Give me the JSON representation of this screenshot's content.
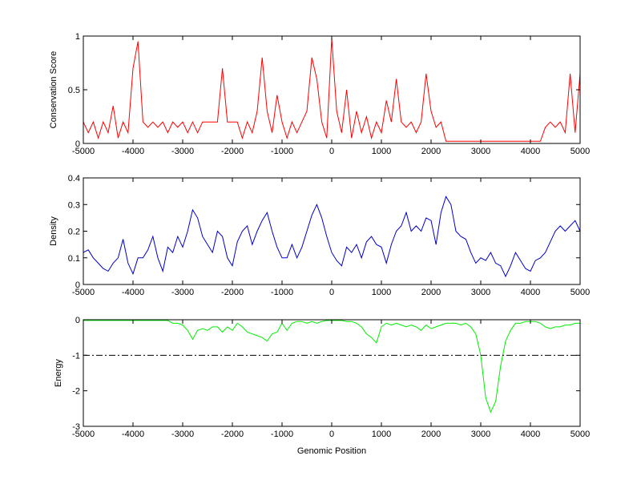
{
  "chart_data": [
    {
      "type": "line",
      "ylabel": "Conservation Score",
      "color": "#ff0000",
      "xlim": [
        -5000,
        5000
      ],
      "xticks": [
        -5000,
        -4000,
        -3000,
        -2000,
        -1000,
        0,
        1000,
        2000,
        3000,
        4000,
        5000
      ],
      "ylim": [
        0,
        1
      ],
      "yticks": [
        0,
        0.5,
        1
      ],
      "x": [
        -5000,
        -4900,
        -4800,
        -4700,
        -4600,
        -4500,
        -4400,
        -4300,
        -4200,
        -4100,
        -4000,
        -3900,
        -3800,
        -3700,
        -3600,
        -3500,
        -3400,
        -3300,
        -3200,
        -3100,
        -3000,
        -2900,
        -2800,
        -2700,
        -2600,
        -2500,
        -2400,
        -2300,
        -2200,
        -2100,
        -2000,
        -1900,
        -1800,
        -1700,
        -1600,
        -1500,
        -1400,
        -1300,
        -1200,
        -1100,
        -1000,
        -900,
        -800,
        -700,
        -600,
        -500,
        -400,
        -300,
        -200,
        -100,
        0,
        100,
        200,
        300,
        400,
        500,
        600,
        700,
        800,
        900,
        1000,
        1100,
        1200,
        1300,
        1400,
        1500,
        1600,
        1700,
        1800,
        1900,
        2000,
        2100,
        2200,
        2300,
        2400,
        2500,
        2600,
        2700,
        2800,
        2900,
        3000,
        3100,
        3200,
        3300,
        3400,
        3500,
        3600,
        3700,
        3800,
        3900,
        4000,
        4100,
        4200,
        4300,
        4400,
        4500,
        4600,
        4700,
        4800,
        4900,
        5000
      ],
      "values": [
        0.2,
        0.1,
        0.2,
        0.05,
        0.2,
        0.1,
        0.35,
        0.05,
        0.2,
        0.1,
        0.7,
        0.95,
        0.2,
        0.15,
        0.2,
        0.15,
        0.2,
        0.1,
        0.2,
        0.15,
        0.2,
        0.1,
        0.2,
        0.1,
        0.2,
        0.2,
        0.2,
        0.2,
        0.7,
        0.2,
        0.2,
        0.2,
        0.05,
        0.2,
        0.1,
        0.3,
        0.8,
        0.3,
        0.1,
        0.45,
        0.2,
        0.05,
        0.2,
        0.1,
        0.2,
        0.3,
        0.8,
        0.6,
        0.2,
        0.05,
        0.98,
        0.3,
        0.1,
        0.5,
        0.05,
        0.3,
        0.1,
        0.25,
        0.05,
        0.2,
        0.1,
        0.4,
        0.2,
        0.6,
        0.2,
        0.15,
        0.2,
        0.1,
        0.2,
        0.65,
        0.3,
        0.15,
        0.2,
        0.02,
        0.02,
        0.02,
        0.02,
        0.02,
        0.02,
        0.02,
        0.02,
        0.02,
        0.02,
        0.02,
        0.02,
        0.02,
        0.02,
        0.02,
        0.02,
        0.02,
        0.02,
        0.02,
        0.02,
        0.15,
        0.2,
        0.15,
        0.2,
        0.1,
        0.65,
        0.1,
        0.65
      ]
    },
    {
      "type": "line",
      "ylabel": "Density",
      "color": "#0000cc",
      "xlim": [
        -5000,
        5000
      ],
      "xticks": [
        -5000,
        -4000,
        -3000,
        -2000,
        -1000,
        0,
        1000,
        2000,
        3000,
        4000,
        5000
      ],
      "ylim": [
        0,
        0.4
      ],
      "yticks": [
        0,
        0.1,
        0.2,
        0.3,
        0.4
      ],
      "x": [
        -5000,
        -4900,
        -4800,
        -4700,
        -4600,
        -4500,
        -4400,
        -4300,
        -4200,
        -4100,
        -4000,
        -3900,
        -3800,
        -3700,
        -3600,
        -3500,
        -3400,
        -3300,
        -3200,
        -3100,
        -3000,
        -2900,
        -2800,
        -2700,
        -2600,
        -2500,
        -2400,
        -2300,
        -2200,
        -2100,
        -2000,
        -1900,
        -1800,
        -1700,
        -1600,
        -1500,
        -1400,
        -1300,
        -1200,
        -1100,
        -1000,
        -900,
        -800,
        -700,
        -600,
        -500,
        -400,
        -300,
        -200,
        -100,
        0,
        100,
        200,
        300,
        400,
        500,
        600,
        700,
        800,
        900,
        1000,
        1100,
        1200,
        1300,
        1400,
        1500,
        1600,
        1700,
        1800,
        1900,
        2000,
        2100,
        2200,
        2300,
        2400,
        2500,
        2600,
        2700,
        2800,
        2900,
        3000,
        3100,
        3200,
        3300,
        3400,
        3500,
        3600,
        3700,
        3800,
        3900,
        4000,
        4100,
        4200,
        4300,
        4400,
        4500,
        4600,
        4700,
        4800,
        4900,
        5000
      ],
      "values": [
        0.12,
        0.13,
        0.1,
        0.08,
        0.06,
        0.05,
        0.08,
        0.1,
        0.17,
        0.08,
        0.04,
        0.1,
        0.1,
        0.13,
        0.18,
        0.1,
        0.05,
        0.14,
        0.12,
        0.18,
        0.14,
        0.2,
        0.28,
        0.25,
        0.18,
        0.15,
        0.12,
        0.2,
        0.18,
        0.1,
        0.07,
        0.16,
        0.2,
        0.22,
        0.15,
        0.2,
        0.24,
        0.27,
        0.2,
        0.14,
        0.1,
        0.1,
        0.15,
        0.1,
        0.14,
        0.2,
        0.26,
        0.3,
        0.25,
        0.18,
        0.12,
        0.09,
        0.07,
        0.14,
        0.12,
        0.15,
        0.1,
        0.16,
        0.18,
        0.15,
        0.14,
        0.08,
        0.15,
        0.2,
        0.22,
        0.27,
        0.2,
        0.22,
        0.2,
        0.25,
        0.24,
        0.15,
        0.27,
        0.33,
        0.3,
        0.2,
        0.18,
        0.17,
        0.12,
        0.08,
        0.1,
        0.09,
        0.12,
        0.08,
        0.07,
        0.03,
        0.07,
        0.12,
        0.09,
        0.06,
        0.05,
        0.09,
        0.1,
        0.12,
        0.16,
        0.2,
        0.22,
        0.2,
        0.22,
        0.24,
        0.2
      ]
    },
    {
      "type": "line",
      "ylabel": "Energy",
      "xlabel": "Genomic Position",
      "color": "#00ee00",
      "xlim": [
        -5000,
        5000
      ],
      "xticks": [
        -5000,
        -4000,
        -3000,
        -2000,
        -1000,
        0,
        1000,
        2000,
        3000,
        4000,
        5000
      ],
      "ylim": [
        -3,
        0
      ],
      "yticks": [
        -3,
        -2,
        -1,
        0
      ],
      "reference_line": -1,
      "x": [
        -5000,
        -4900,
        -4800,
        -4700,
        -4600,
        -4500,
        -4400,
        -4300,
        -4200,
        -4100,
        -4000,
        -3900,
        -3800,
        -3700,
        -3600,
        -3500,
        -3400,
        -3300,
        -3200,
        -3100,
        -3000,
        -2900,
        -2800,
        -2700,
        -2600,
        -2500,
        -2400,
        -2300,
        -2200,
        -2100,
        -2000,
        -1900,
        -1800,
        -1700,
        -1600,
        -1500,
        -1400,
        -1300,
        -1200,
        -1100,
        -1000,
        -900,
        -800,
        -700,
        -600,
        -500,
        -400,
        -300,
        -200,
        -100,
        0,
        100,
        200,
        300,
        400,
        500,
        600,
        700,
        800,
        900,
        1000,
        1100,
        1200,
        1300,
        1400,
        1500,
        1600,
        1700,
        1800,
        1900,
        2000,
        2100,
        2200,
        2300,
        2400,
        2500,
        2600,
        2700,
        2800,
        2900,
        3000,
        3100,
        3200,
        3300,
        3400,
        3500,
        3600,
        3700,
        3800,
        3900,
        4000,
        4100,
        4200,
        4300,
        4400,
        4500,
        4600,
        4700,
        4800,
        4900,
        5000
      ],
      "values": [
        -0.02,
        -0.02,
        -0.02,
        -0.02,
        -0.02,
        -0.02,
        -0.02,
        -0.02,
        -0.02,
        -0.02,
        -0.02,
        -0.02,
        -0.02,
        -0.02,
        -0.02,
        -0.02,
        -0.02,
        -0.02,
        -0.1,
        -0.1,
        -0.15,
        -0.3,
        -0.55,
        -0.3,
        -0.25,
        -0.3,
        -0.2,
        -0.2,
        -0.35,
        -0.2,
        -0.3,
        -0.1,
        -0.2,
        -0.35,
        -0.4,
        -0.45,
        -0.5,
        -0.6,
        -0.4,
        -0.35,
        -0.1,
        -0.3,
        -0.1,
        -0.05,
        -0.05,
        -0.1,
        -0.05,
        -0.1,
        -0.05,
        -0.02,
        -0.02,
        -0.02,
        -0.02,
        -0.05,
        -0.05,
        -0.1,
        -0.2,
        -0.4,
        -0.5,
        -0.65,
        -0.2,
        -0.1,
        -0.15,
        -0.1,
        -0.15,
        -0.2,
        -0.15,
        -0.2,
        -0.3,
        -0.15,
        -0.25,
        -0.2,
        -0.15,
        -0.1,
        -0.1,
        -0.1,
        -0.15,
        -0.1,
        -0.2,
        -0.4,
        -1.0,
        -2.2,
        -2.6,
        -2.3,
        -1.3,
        -0.6,
        -0.3,
        -0.1,
        -0.1,
        -0.05,
        -0.05,
        -0.05,
        -0.1,
        -0.2,
        -0.25,
        -0.2,
        -0.2,
        -0.15,
        -0.15,
        -0.1,
        -0.1
      ]
    }
  ]
}
